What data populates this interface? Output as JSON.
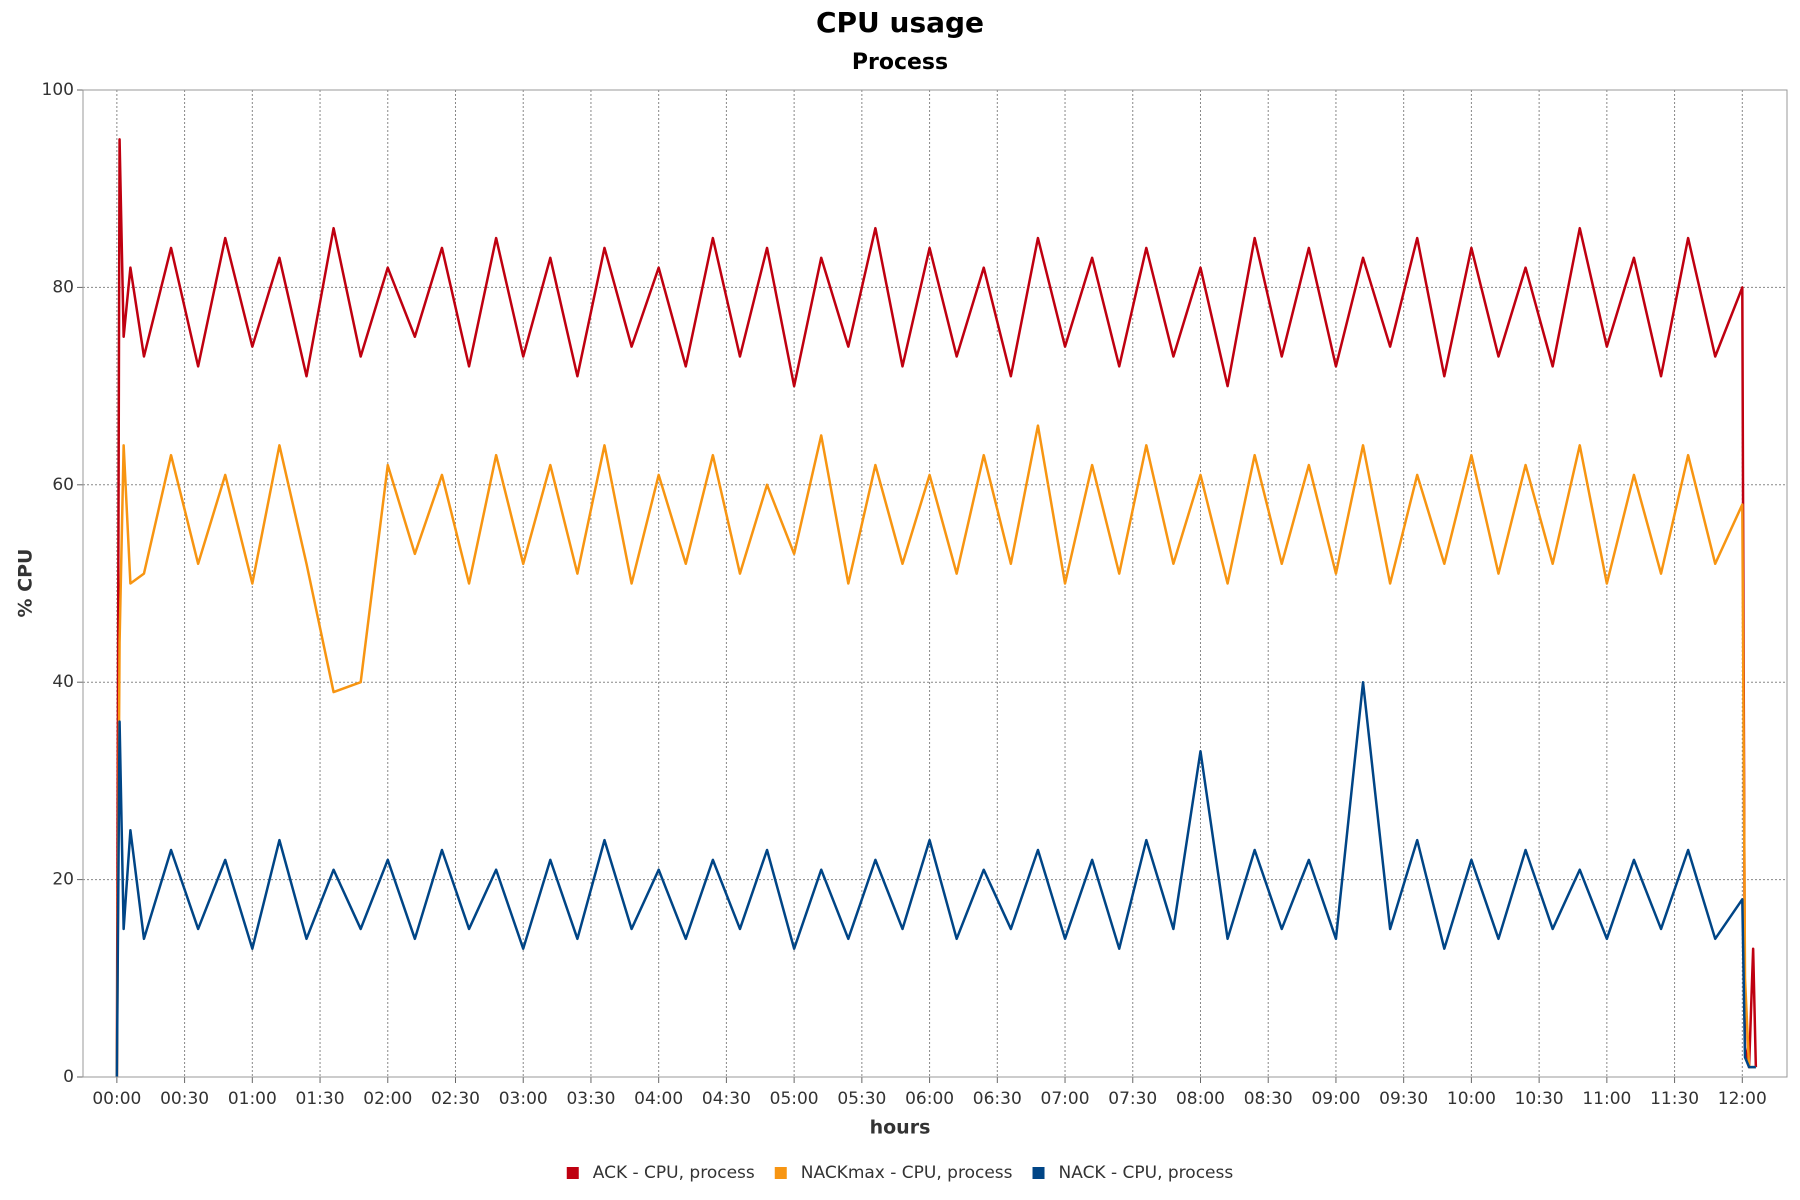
{
  "chart_data": {
    "type": "line",
    "title": "CPU usage",
    "subtitle": "Process",
    "xlabel": "hours",
    "ylabel": "% CPU",
    "xlim": [
      -0.25,
      12.33
    ],
    "ylim": [
      0,
      100
    ],
    "xticks": [
      {
        "value": 0,
        "label": "00:00"
      },
      {
        "value": 0.5,
        "label": "00:30"
      },
      {
        "value": 1,
        "label": "01:00"
      },
      {
        "value": 1.5,
        "label": "01:30"
      },
      {
        "value": 2,
        "label": "02:00"
      },
      {
        "value": 2.5,
        "label": "02:30"
      },
      {
        "value": 3,
        "label": "03:00"
      },
      {
        "value": 3.5,
        "label": "03:30"
      },
      {
        "value": 4,
        "label": "04:00"
      },
      {
        "value": 4.5,
        "label": "04:30"
      },
      {
        "value": 5,
        "label": "05:00"
      },
      {
        "value": 5.5,
        "label": "05:30"
      },
      {
        "value": 6,
        "label": "06:00"
      },
      {
        "value": 6.5,
        "label": "06:30"
      },
      {
        "value": 7,
        "label": "07:00"
      },
      {
        "value": 7.5,
        "label": "07:30"
      },
      {
        "value": 8,
        "label": "08:00"
      },
      {
        "value": 8.5,
        "label": "08:30"
      },
      {
        "value": 9,
        "label": "09:00"
      },
      {
        "value": 9.5,
        "label": "09:30"
      },
      {
        "value": 10,
        "label": "10:00"
      },
      {
        "value": 10.5,
        "label": "10:30"
      },
      {
        "value": 11,
        "label": "11:00"
      },
      {
        "value": 11.5,
        "label": "11:30"
      },
      {
        "value": 12,
        "label": "12:00"
      }
    ],
    "yticks": [
      0,
      20,
      40,
      60,
      80,
      100
    ],
    "grid": true,
    "legend": "bottom",
    "x": [
      0,
      0.02,
      0.05,
      0.1,
      0.2,
      0.4,
      0.6,
      0.8,
      1,
      1.2,
      1.4,
      1.6,
      1.8,
      2,
      2.2,
      2.4,
      2.6,
      2.8,
      3,
      3.2,
      3.4,
      3.6,
      3.8,
      4,
      4.2,
      4.4,
      4.6,
      4.8,
      5,
      5.2,
      5.4,
      5.6,
      5.8,
      6,
      6.2,
      6.4,
      6.6,
      6.8,
      7,
      7.2,
      7.4,
      7.6,
      7.8,
      8,
      8.2,
      8.4,
      8.6,
      8.8,
      9,
      9.2,
      9.4,
      9.6,
      9.8,
      10,
      10.2,
      10.4,
      10.6,
      10.8,
      11,
      11.2,
      11.4,
      11.6,
      11.8,
      12,
      12.02,
      12.05,
      12.08,
      12.1
    ],
    "series": [
      {
        "name": "ACK - CPU, process",
        "color": "#bf0010",
        "values": [
          0,
          95,
          75,
          82,
          73,
          84,
          72,
          85,
          74,
          83,
          71,
          86,
          73,
          82,
          75,
          84,
          72,
          85,
          73,
          83,
          71,
          84,
          74,
          82,
          72,
          85,
          73,
          84,
          70,
          83,
          74,
          86,
          72,
          84,
          73,
          82,
          71,
          85,
          74,
          83,
          72,
          84,
          73,
          82,
          70,
          85,
          73,
          84,
          72,
          83,
          74,
          85,
          71,
          84,
          73,
          82,
          72,
          86,
          74,
          83,
          71,
          85,
          73,
          80,
          3,
          1,
          13,
          1
        ]
      },
      {
        "name": "NACKmax - CPU, process",
        "color": "#f79512",
        "values": [
          0,
          44,
          64,
          50,
          51,
          63,
          52,
          61,
          50,
          64,
          52,
          39,
          40,
          62,
          53,
          61,
          50,
          63,
          52,
          62,
          51,
          64,
          50,
          61,
          52,
          63,
          51,
          60,
          53,
          65,
          50,
          62,
          52,
          61,
          51,
          63,
          52,
          66,
          50,
          62,
          51,
          64,
          52,
          61,
          50,
          63,
          52,
          62,
          51,
          64,
          50,
          61,
          52,
          63,
          51,
          62,
          52,
          64,
          50,
          61,
          51,
          63,
          52,
          58,
          10,
          1,
          1,
          1
        ]
      },
      {
        "name": "NACK - CPU, process",
        "color": "#004586",
        "values": [
          0,
          36,
          15,
          25,
          14,
          23,
          15,
          22,
          13,
          24,
          14,
          21,
          15,
          22,
          14,
          23,
          15,
          21,
          13,
          22,
          14,
          24,
          15,
          21,
          14,
          22,
          15,
          23,
          13,
          21,
          14,
          22,
          15,
          24,
          14,
          21,
          15,
          23,
          14,
          22,
          13,
          24,
          15,
          33,
          14,
          23,
          15,
          22,
          14,
          40,
          15,
          24,
          13,
          22,
          14,
          23,
          15,
          21,
          14,
          22,
          15,
          23,
          14,
          18,
          2,
          1,
          1,
          1
        ]
      }
    ]
  }
}
